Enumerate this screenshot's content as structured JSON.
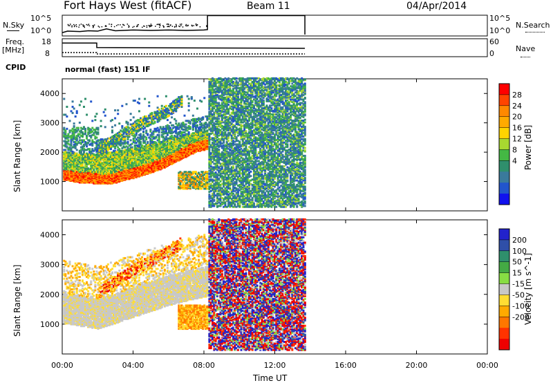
{
  "header": {
    "station": "Fort Hays West (fitACF)",
    "beam": "Beam 11",
    "date": "04/Apr/2014"
  },
  "top_panel": {
    "left_label": "N.Sky",
    "left_ticks": [
      "10^5",
      "10^0"
    ],
    "right_ticks": [
      "10^5",
      "10^0"
    ],
    "right_label": "N.Search"
  },
  "freq_panel": {
    "left_label_line1": "Freq.",
    "left_label_line2": "[MHz]",
    "left_ticks": [
      "18",
      "8"
    ],
    "right_ticks": [
      "60",
      "0"
    ],
    "right_label": "Nave"
  },
  "cpid": {
    "label": "CPID",
    "value": "normal (fast) 151 IF"
  },
  "x_axis": {
    "ticks": [
      "00:00",
      "04:00",
      "08:00",
      "12:00",
      "16:00",
      "20:00",
      "00:00"
    ],
    "label": "Time UT"
  },
  "y_axis": {
    "label": "Slant Range [km]",
    "ticks": [
      "1000",
      "2000",
      "3000",
      "4000"
    ]
  },
  "power_colorbar": {
    "label": "Power [dB]",
    "ticks": [
      "28",
      "24",
      "20",
      "16",
      "12",
      "8",
      "4"
    ],
    "colors": [
      "#ff0000",
      "#ff4400",
      "#ff8800",
      "#ffaa00",
      "#ffd400",
      "#a8d830",
      "#44b844",
      "#2f8f6c",
      "#3a7a9c",
      "#2255cc",
      "#1111ee"
    ]
  },
  "velocity_colorbar": {
    "label": "Velocity [m s^-1]",
    "ticks": [
      "200",
      "100",
      "50",
      "15",
      "-15",
      "-50",
      "-100",
      "-200"
    ],
    "colors": [
      "#2222cc",
      "#2f4fa8",
      "#2f8f6c",
      "#44aa44",
      "#88dd44",
      "#c8c8c8",
      "#ffdd33",
      "#ffaa00",
      "#ff7700",
      "#ff3300",
      "#ee0000"
    ]
  },
  "chart_data": [
    {
      "type": "line",
      "title": "N.Sky / N.Search",
      "x_range_hours": [
        0,
        24
      ],
      "series": [
        {
          "name": "N.Sky",
          "x": [
            0,
            0.3,
            1,
            1.5,
            2,
            2.5,
            3,
            4,
            5,
            6,
            7,
            8,
            8.2,
            8.2,
            13.7
          ],
          "y_log10": [
            0.5,
            0.9,
            0.8,
            1.0,
            0.9,
            1.5,
            1.0,
            1.2,
            1.1,
            1.2,
            1.1,
            1.2,
            1.3,
            5.0,
            5.0
          ]
        },
        {
          "name": "N.Search",
          "x": [
            13.7,
            13.7
          ],
          "y_log10": [
            0,
            5
          ]
        }
      ]
    },
    {
      "type": "line",
      "title": "Freq. / Nave",
      "x_range_hours": [
        0,
        24
      ],
      "series": [
        {
          "name": "Freq.",
          "x": [
            0,
            1.95,
            1.95,
            13.7
          ],
          "y": [
            17,
            17,
            14,
            13.5
          ]
        },
        {
          "name": "Nave",
          "x": [
            0,
            1.95,
            1.95,
            13.7
          ],
          "y": [
            15,
            15,
            10,
            10
          ]
        }
      ]
    },
    {
      "type": "heatmap",
      "title": "Power",
      "xlabel": "Time UT",
      "ylabel": "Slant Range [km]",
      "colorbar_label": "Power [dB]",
      "x_range_hours": [
        0,
        24
      ],
      "y_range_km": [
        0,
        4500
      ],
      "features": [
        {
          "name": "red_band",
          "x": [
            0,
            0.5,
            1.0,
            1.5,
            2.0,
            2.5,
            3.0,
            3.5,
            4.0,
            4.5,
            5.0,
            5.5,
            6.0,
            6.5,
            7.0,
            7.5,
            8.2
          ],
          "y_km": [
            1200,
            1150,
            1100,
            1100,
            1050,
            1050,
            1100,
            1200,
            1250,
            1350,
            1450,
            1550,
            1700,
            1850,
            2000,
            2150,
            2250
          ]
        },
        {
          "name": "upper_green",
          "x": [
            0,
            1,
            2,
            3,
            4,
            5,
            6,
            7,
            8.2
          ],
          "y_km": [
            1800,
            1700,
            1700,
            1800,
            1900,
            2050,
            2200,
            2350,
            2500
          ]
        },
        {
          "name": "diagonal_streak",
          "x": [
            2,
            3,
            4,
            5,
            6,
            6.7
          ],
          "y_km": [
            2000,
            2400,
            2800,
            3100,
            3400,
            3700
          ]
        },
        {
          "name": "noise_region",
          "x_range": [
            8.2,
            13.7
          ],
          "y_range_km": [
            100,
            4500
          ]
        }
      ]
    },
    {
      "type": "heatmap",
      "title": "Velocity",
      "xlabel": "Time UT",
      "ylabel": "Slant Range [km]",
      "colorbar_label": "Velocity [m s^-1]",
      "x_range_hours": [
        0,
        24
      ],
      "y_range_km": [
        0,
        4500
      ],
      "features": [
        {
          "name": "gray_band",
          "x": [
            0,
            1,
            2,
            3,
            4,
            5,
            6,
            7,
            8.2
          ],
          "y_km": [
            1500,
            1400,
            1300,
            1500,
            1700,
            1900,
            2100,
            2250,
            2400
          ]
        },
        {
          "name": "orange_patch",
          "x_range": [
            6.5,
            8.2
          ],
          "y_range_km": [
            800,
            1600
          ]
        },
        {
          "name": "noise_region",
          "x_range": [
            8.2,
            13.7
          ],
          "y_range_km": [
            100,
            4500
          ]
        }
      ]
    }
  ]
}
